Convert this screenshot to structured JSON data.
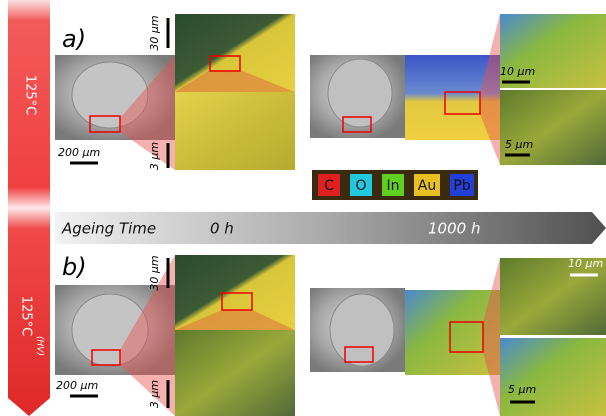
{
  "side_labels": {
    "top": "125°C",
    "bottom": "125°C",
    "bottom_note": "(HV)"
  },
  "timeline": {
    "title": "Ageing Time",
    "start": "0 h",
    "end": "1000 h"
  },
  "legend": [
    "C",
    "O",
    "In",
    "Au",
    "Pb"
  ],
  "panels": [
    {
      "label": "a)",
      "scale_bars": {
        "overview": "200 µm",
        "map_top": "30 µm",
        "map_bottom": "3 µm",
        "aged_top": "10 µm",
        "aged_bottom": "5 µm"
      }
    },
    {
      "label": "b)",
      "scale_bars": {
        "overview": "200 µm",
        "map_top": "30 µm",
        "map_bottom": "3 µm",
        "aged_top": "10 µm",
        "aged_bottom": "5 µm"
      }
    }
  ]
}
